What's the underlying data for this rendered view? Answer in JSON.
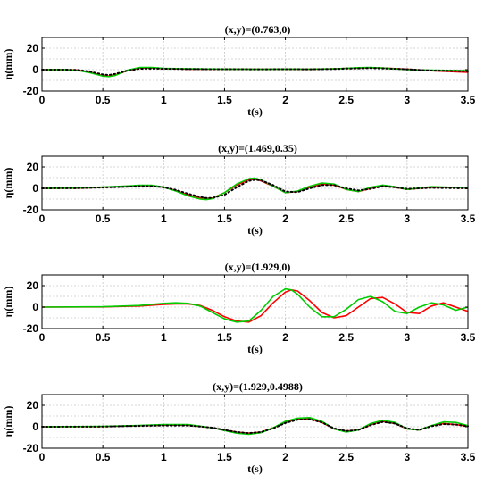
{
  "chart_data": [
    {
      "type": "line",
      "title": "(x,y)=(0.763,0)",
      "xlabel": "t(s)",
      "ylabel": "η(mm)",
      "xlim": [
        0,
        3.5
      ],
      "ylim": [
        -20,
        30
      ],
      "xticks": [
        "0",
        "0.5",
        "1",
        "1.5",
        "2",
        "2.5",
        "3",
        "3.5"
      ],
      "yticks": [
        "-20",
        "0",
        "20"
      ],
      "grid": true,
      "series": [
        {
          "color": "#ff0000",
          "style": "solid",
          "x": [
            0,
            0.2,
            0.3,
            0.4,
            0.5,
            0.55,
            0.6,
            0.7,
            0.8,
            0.9,
            1.0,
            1.2,
            1.5,
            1.8,
            2.0,
            2.2,
            2.4,
            2.5,
            2.6,
            2.7,
            2.8,
            3.0,
            3.2,
            3.5
          ],
          "y": [
            0,
            0,
            -0.5,
            -2.5,
            -5.5,
            -6,
            -5,
            -1,
            1.5,
            1.5,
            1,
            0.5,
            0.5,
            0.3,
            0.5,
            0.3,
            0.8,
            1.2,
            1.5,
            1.8,
            1.5,
            0.5,
            -1,
            -2.5
          ]
        },
        {
          "color": "#00cc00",
          "style": "solid",
          "x": [
            0,
            0.2,
            0.3,
            0.4,
            0.5,
            0.55,
            0.6,
            0.7,
            0.8,
            0.9,
            1.0,
            1.2,
            1.5,
            1.8,
            2.0,
            2.2,
            2.4,
            2.5,
            2.6,
            2.7,
            2.8,
            3.0,
            3.2,
            3.5
          ],
          "y": [
            0,
            0,
            -0.8,
            -3,
            -6,
            -6.5,
            -5.5,
            -0.5,
            2,
            2,
            1.2,
            0.8,
            0.5,
            0.3,
            0.5,
            0.4,
            0.8,
            1.2,
            1.8,
            2,
            1.5,
            0,
            -0.5,
            -1
          ]
        },
        {
          "color": "#000000",
          "style": "dotted",
          "x": [
            0,
            0.2,
            0.3,
            0.4,
            0.5,
            0.55,
            0.6,
            0.7,
            0.8,
            0.9,
            1.0,
            1.2,
            1.5,
            1.8,
            2.0,
            2.2,
            2.4,
            2.5,
            2.6,
            2.7,
            2.8,
            3.0,
            3.2,
            3.5
          ],
          "y": [
            0,
            0,
            -0.3,
            -2,
            -4.5,
            -5,
            -4,
            -1,
            0.8,
            1,
            0.8,
            0.5,
            0.4,
            0.3,
            0.4,
            0.3,
            0.6,
            1,
            1.2,
            1.5,
            1.2,
            0.3,
            -0.8,
            -1.5
          ]
        }
      ]
    },
    {
      "type": "line",
      "title": "(x,y)=(1.469,0.35)",
      "xlabel": "t(s)",
      "ylabel": "η(mm)",
      "xlim": [
        0,
        3.5
      ],
      "ylim": [
        -20,
        30
      ],
      "xticks": [
        "0",
        "0.5",
        "1",
        "1.5",
        "2",
        "2.5",
        "3",
        "3.5"
      ],
      "yticks": [
        "-20",
        "0",
        "20"
      ],
      "grid": true,
      "series": [
        {
          "color": "#ff0000",
          "style": "solid",
          "x": [
            0,
            0.3,
            0.5,
            0.7,
            0.8,
            0.9,
            1.0,
            1.1,
            1.2,
            1.3,
            1.35,
            1.4,
            1.5,
            1.6,
            1.7,
            1.75,
            1.8,
            1.9,
            2.0,
            2.1,
            2.2,
            2.3,
            2.4,
            2.5,
            2.6,
            2.7,
            2.8,
            2.9,
            3.0,
            3.2,
            3.5
          ],
          "y": [
            0,
            0.2,
            1,
            2,
            2.5,
            2.5,
            1,
            -2,
            -6,
            -9,
            -9.5,
            -9,
            -4,
            3,
            8,
            8.5,
            7,
            2,
            -4,
            -3,
            1,
            4,
            3,
            -1,
            -3,
            0,
            2.5,
            1,
            -1,
            1,
            0.5
          ]
        },
        {
          "color": "#00cc00",
          "style": "solid",
          "x": [
            0,
            0.3,
            0.5,
            0.7,
            0.8,
            0.9,
            1.0,
            1.1,
            1.2,
            1.3,
            1.35,
            1.4,
            1.5,
            1.6,
            1.7,
            1.75,
            1.8,
            1.9,
            2.0,
            2.1,
            2.2,
            2.3,
            2.4,
            2.5,
            2.6,
            2.7,
            2.8,
            2.9,
            3.0,
            3.2,
            3.5
          ],
          "y": [
            0,
            0.3,
            1.2,
            2.2,
            2.8,
            2.8,
            1.2,
            -2.5,
            -7,
            -10,
            -10.5,
            -9.5,
            -4,
            4,
            9,
            9.5,
            8,
            2,
            -4,
            -2.5,
            2,
            5,
            4,
            -1,
            -3,
            1,
            3,
            1.5,
            -1,
            1.5,
            0.5
          ]
        },
        {
          "color": "#000000",
          "style": "dotted",
          "x": [
            0,
            0.3,
            0.5,
            0.7,
            0.8,
            0.9,
            1.0,
            1.1,
            1.2,
            1.3,
            1.35,
            1.4,
            1.5,
            1.6,
            1.7,
            1.75,
            1.8,
            1.9,
            2.0,
            2.1,
            2.2,
            2.3,
            2.4,
            2.5,
            2.6,
            2.7,
            2.8,
            2.9,
            3.0,
            3.2,
            3.5
          ],
          "y": [
            0,
            0.2,
            0.8,
            1.5,
            2,
            2,
            1,
            -1.5,
            -5,
            -8,
            -9,
            -9,
            -6,
            1,
            7,
            8,
            7.5,
            3,
            -3,
            -3.5,
            0,
            3,
            3,
            0,
            -2,
            -0.5,
            2,
            1,
            -0.5,
            0.5,
            0
          ]
        }
      ]
    },
    {
      "type": "line",
      "title": "(x,y)=(1.929,0)",
      "xlabel": "t(s)",
      "ylabel": "η(mm)",
      "xlim": [
        0,
        3.5
      ],
      "ylim": [
        -20,
        30
      ],
      "xticks": [
        "0",
        "0.5",
        "1",
        "1.5",
        "2",
        "2.5",
        "3",
        "3.5"
      ],
      "yticks": [
        "-20",
        "0",
        "20"
      ],
      "grid": true,
      "series": [
        {
          "color": "#ff0000",
          "style": "solid",
          "x": [
            0,
            0.5,
            0.8,
            1.0,
            1.1,
            1.2,
            1.3,
            1.4,
            1.5,
            1.6,
            1.7,
            1.8,
            1.9,
            2.0,
            2.05,
            2.1,
            2.2,
            2.3,
            2.4,
            2.5,
            2.6,
            2.7,
            2.8,
            2.9,
            3.0,
            3.1,
            3.2,
            3.3,
            3.4,
            3.5
          ],
          "y": [
            0,
            0.2,
            1,
            2.5,
            3,
            3,
            1.5,
            -3,
            -9,
            -13,
            -14,
            -8,
            4,
            14,
            16,
            15,
            6,
            -5,
            -10,
            -8,
            0,
            8,
            9,
            3,
            -5,
            -6,
            1,
            4,
            0,
            -4
          ]
        },
        {
          "color": "#00cc00",
          "style": "solid",
          "x": [
            0,
            0.5,
            0.8,
            1.0,
            1.1,
            1.2,
            1.3,
            1.4,
            1.5,
            1.6,
            1.7,
            1.8,
            1.9,
            2.0,
            2.05,
            2.1,
            2.2,
            2.3,
            2.4,
            2.5,
            2.6,
            2.7,
            2.8,
            2.9,
            3.0,
            3.1,
            3.2,
            3.3,
            3.4,
            3.5
          ],
          "y": [
            0,
            0.3,
            1.5,
            3.5,
            4,
            3.5,
            1,
            -5,
            -11,
            -14,
            -13,
            -3,
            10,
            17,
            16,
            12,
            0,
            -9,
            -9,
            -2,
            7,
            10,
            5,
            -4,
            -6,
            0,
            4,
            2,
            -3,
            0
          ]
        }
      ]
    },
    {
      "type": "line",
      "title": "(x,y)=(1.929,0.4988)",
      "xlabel": "t(s)",
      "ylabel": "η(mm)",
      "xlim": [
        0,
        3.5
      ],
      "ylim": [
        -20,
        30
      ],
      "xticks": [
        "0",
        "0.5",
        "1",
        "1.5",
        "2",
        "2.5",
        "3",
        "3.5"
      ],
      "yticks": [
        "-20",
        "0",
        "20"
      ],
      "grid": true,
      "series": [
        {
          "color": "#ff0000",
          "style": "solid",
          "x": [
            0,
            0.5,
            0.8,
            1.0,
            1.2,
            1.4,
            1.5,
            1.6,
            1.7,
            1.8,
            1.9,
            2.0,
            2.1,
            2.2,
            2.3,
            2.4,
            2.5,
            2.6,
            2.7,
            2.8,
            2.9,
            3.0,
            3.1,
            3.2,
            3.3,
            3.4,
            3.5
          ],
          "y": [
            0,
            0.2,
            1,
            1.5,
            1.5,
            -1,
            -3,
            -5,
            -6,
            -5,
            -1,
            4,
            7,
            7.5,
            4,
            -2,
            -4,
            -3,
            2,
            5,
            3,
            -2,
            -3,
            1,
            3,
            2,
            0.5
          ]
        },
        {
          "color": "#00cc00",
          "style": "solid",
          "x": [
            0,
            0.5,
            0.8,
            1.0,
            1.2,
            1.4,
            1.5,
            1.6,
            1.7,
            1.8,
            1.9,
            2.0,
            2.1,
            2.2,
            2.3,
            2.4,
            2.5,
            2.6,
            2.7,
            2.8,
            2.9,
            3.0,
            3.1,
            3.2,
            3.3,
            3.4,
            3.5
          ],
          "y": [
            0,
            0.3,
            1.2,
            2,
            2,
            -1,
            -3.5,
            -6,
            -7,
            -5.5,
            -1,
            5,
            8,
            8.5,
            5,
            -2,
            -5,
            -3,
            3,
            6,
            4,
            -2,
            -3,
            1,
            4.5,
            4,
            1
          ]
        },
        {
          "color": "#000000",
          "style": "dotted",
          "x": [
            0,
            0.5,
            0.8,
            1.0,
            1.2,
            1.4,
            1.5,
            1.6,
            1.7,
            1.8,
            1.9,
            2.0,
            2.1,
            2.2,
            2.3,
            2.4,
            2.5,
            2.6,
            2.7,
            2.8,
            2.9,
            3.0,
            3.1,
            3.2,
            3.3,
            3.4,
            3.5
          ],
          "y": [
            0,
            0.2,
            0.8,
            1.2,
            1.2,
            -0.8,
            -3,
            -5,
            -6,
            -5,
            -1.5,
            3.5,
            6.5,
            7,
            4,
            -1.5,
            -4,
            -3,
            1.5,
            4.5,
            3,
            -1.5,
            -3,
            0.5,
            2.5,
            2,
            0.5
          ]
        }
      ]
    }
  ]
}
